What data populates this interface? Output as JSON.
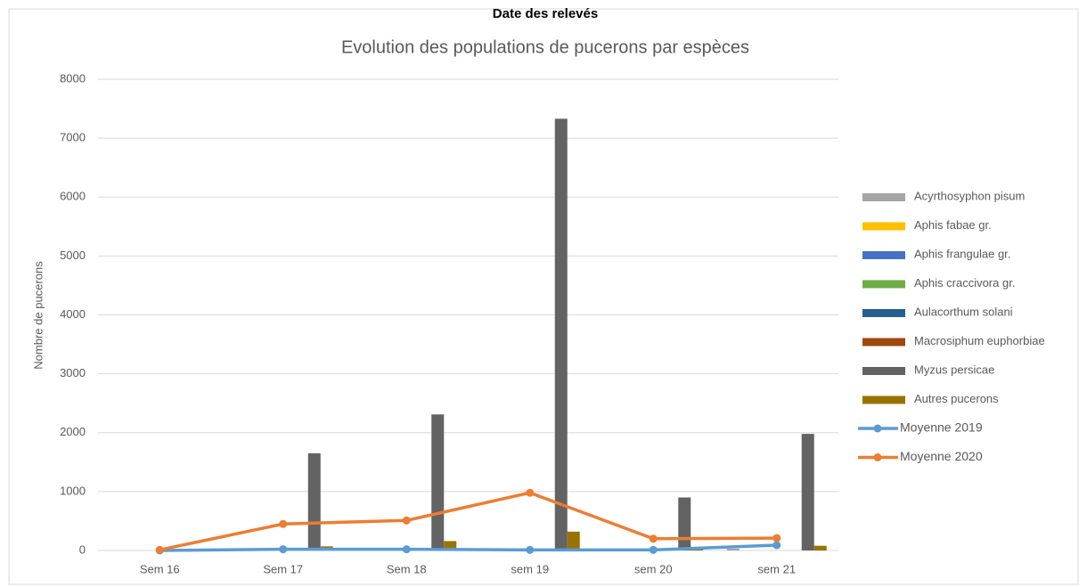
{
  "chart_data": {
    "type": "bar",
    "top_label": "Date des relevés",
    "title": "Evolution des populations de pucerons par espèces",
    "y_label": "Nombre de pucerons",
    "categories": [
      "Sem 16",
      "Sem 17",
      "Sem 18",
      "sem 19",
      "sem 20",
      "sem 21"
    ],
    "ylim": [
      0,
      8000
    ],
    "yticks": [
      0,
      1000,
      2000,
      3000,
      4000,
      5000,
      6000,
      7000,
      8000
    ],
    "grid": true,
    "legend": "right",
    "series": [
      {
        "name": "Acyrthosyphon pisum",
        "color": "#a5a5a5",
        "values": [
          0,
          0,
          0,
          0,
          0,
          30
        ]
      },
      {
        "name": "Aphis fabae gr.",
        "color": "#ffc000",
        "values": [
          0,
          0,
          0,
          0,
          0,
          0
        ]
      },
      {
        "name": "Aphis frangulae gr.",
        "color": "#4472c4",
        "values": [
          0,
          0,
          0,
          0,
          0,
          0
        ]
      },
      {
        "name": "Aphis craccivora gr.",
        "color": "#70ad47",
        "values": [
          0,
          0,
          0,
          0,
          0,
          0
        ]
      },
      {
        "name": "Aulacorthum solani",
        "color": "#255e91",
        "values": [
          0,
          0,
          0,
          0,
          0,
          0
        ]
      },
      {
        "name": "Macrosiphum euphorbiae",
        "color": "#9e480e",
        "values": [
          0,
          0,
          0,
          0,
          0,
          0
        ]
      },
      {
        "name": "Myzus persicae",
        "color": "#636363",
        "values": [
          0,
          1650,
          2310,
          7330,
          900,
          1980
        ]
      },
      {
        "name": "Autres pucerons",
        "color": "#997300",
        "values": [
          0,
          70,
          160,
          320,
          20,
          80
        ]
      },
      {
        "name": "Moyenne 2019",
        "color": "#5b9bd5",
        "type": "line",
        "values": [
          0,
          20,
          20,
          10,
          10,
          90
        ]
      },
      {
        "name": "Moyenne 2020",
        "color": "#ed7d31",
        "type": "line",
        "values": [
          10,
          450,
          510,
          980,
          200,
          210
        ]
      }
    ]
  }
}
